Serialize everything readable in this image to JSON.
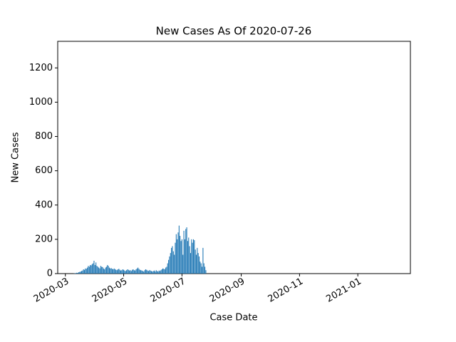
{
  "chart_data": {
    "type": "bar",
    "title": "New Cases As Of 2020-07-26",
    "x_label": "Case Date",
    "y_label": "New Cases",
    "color": "#1f77b4",
    "x": [
      "2020-03-10",
      "2020-03-11",
      "2020-03-12",
      "2020-03-13",
      "2020-03-14",
      "2020-03-15",
      "2020-03-16",
      "2020-03-17",
      "2020-03-18",
      "2020-03-19",
      "2020-03-20",
      "2020-03-21",
      "2020-03-22",
      "2020-03-23",
      "2020-03-24",
      "2020-03-25",
      "2020-03-26",
      "2020-03-27",
      "2020-03-28",
      "2020-03-29",
      "2020-03-30",
      "2020-03-31",
      "2020-04-01",
      "2020-04-02",
      "2020-04-03",
      "2020-04-04",
      "2020-04-05",
      "2020-04-06",
      "2020-04-07",
      "2020-04-08",
      "2020-04-09",
      "2020-04-10",
      "2020-04-11",
      "2020-04-12",
      "2020-04-13",
      "2020-04-14",
      "2020-04-15",
      "2020-04-16",
      "2020-04-17",
      "2020-04-18",
      "2020-04-19",
      "2020-04-20",
      "2020-04-21",
      "2020-04-22",
      "2020-04-23",
      "2020-04-24",
      "2020-04-25",
      "2020-04-26",
      "2020-04-27",
      "2020-04-28",
      "2020-04-29",
      "2020-04-30",
      "2020-05-01",
      "2020-05-02",
      "2020-05-03",
      "2020-05-04",
      "2020-05-05",
      "2020-05-06",
      "2020-05-07",
      "2020-05-08",
      "2020-05-09",
      "2020-05-10",
      "2020-05-11",
      "2020-05-12",
      "2020-05-13",
      "2020-05-14",
      "2020-05-15",
      "2020-05-16",
      "2020-05-17",
      "2020-05-18",
      "2020-05-19",
      "2020-05-20",
      "2020-05-21",
      "2020-05-22",
      "2020-05-23",
      "2020-05-24",
      "2020-05-25",
      "2020-05-26",
      "2020-05-27",
      "2020-05-28",
      "2020-05-29",
      "2020-05-30",
      "2020-05-31",
      "2020-06-01",
      "2020-06-02",
      "2020-06-03",
      "2020-06-04",
      "2020-06-05",
      "2020-06-06",
      "2020-06-07",
      "2020-06-08",
      "2020-06-09",
      "2020-06-10",
      "2020-06-11",
      "2020-06-12",
      "2020-06-13",
      "2020-06-14",
      "2020-06-15",
      "2020-06-16",
      "2020-06-17",
      "2020-06-18",
      "2020-06-19",
      "2020-06-20",
      "2020-06-21",
      "2020-06-22",
      "2020-06-23",
      "2020-06-24",
      "2020-06-25",
      "2020-06-26",
      "2020-06-27",
      "2020-06-28",
      "2020-06-29",
      "2020-06-30",
      "2020-07-01",
      "2020-07-02",
      "2020-07-03",
      "2020-07-04",
      "2020-07-05",
      "2020-07-06",
      "2020-07-07",
      "2020-07-08",
      "2020-07-09",
      "2020-07-10",
      "2020-07-11",
      "2020-07-12",
      "2020-07-13",
      "2020-07-14",
      "2020-07-15",
      "2020-07-16",
      "2020-07-17",
      "2020-07-18",
      "2020-07-19",
      "2020-07-20",
      "2020-07-21",
      "2020-07-22",
      "2020-07-23",
      "2020-07-24",
      "2020-07-25",
      "2020-07-26"
    ],
    "values": [
      1,
      2,
      3,
      5,
      4,
      8,
      10,
      12,
      15,
      18,
      25,
      22,
      30,
      28,
      35,
      45,
      40,
      50,
      48,
      55,
      60,
      75,
      50,
      65,
      45,
      40,
      35,
      30,
      45,
      40,
      38,
      30,
      25,
      35,
      40,
      50,
      45,
      35,
      30,
      32,
      28,
      25,
      30,
      26,
      22,
      20,
      25,
      28,
      22,
      18,
      20,
      25,
      22,
      18,
      15,
      20,
      25,
      22,
      18,
      20,
      15,
      22,
      25,
      20,
      18,
      25,
      30,
      35,
      28,
      22,
      20,
      18,
      15,
      12,
      20,
      25,
      22,
      18,
      15,
      20,
      18,
      15,
      12,
      15,
      18,
      12,
      20,
      15,
      12,
      18,
      15,
      20,
      25,
      30,
      28,
      25,
      35,
      40,
      60,
      80,
      100,
      120,
      150,
      160,
      130,
      110,
      180,
      230,
      200,
      240,
      280,
      220,
      190,
      200,
      110,
      250,
      200,
      260,
      270,
      190,
      210,
      160,
      120,
      200,
      180,
      200,
      195,
      140,
      110,
      150,
      120,
      100,
      70,
      60,
      40,
      150,
      60,
      40,
      20
    ],
    "xlim": [
      "2020-02-22",
      "2021-02-25"
    ],
    "xticks": [
      {
        "value": "2020-03-01",
        "label": "2020-03"
      },
      {
        "value": "2020-05-01",
        "label": "2020-05"
      },
      {
        "value": "2020-07-01",
        "label": "2020-07"
      },
      {
        "value": "2020-09-01",
        "label": "2020-09"
      },
      {
        "value": "2020-11-01",
        "label": "2020-11"
      },
      {
        "value": "2021-01-01",
        "label": "2021-01"
      }
    ],
    "ylim": [
      0,
      1355
    ],
    "yticks": [
      0,
      200,
      400,
      600,
      800,
      1000,
      1200
    ]
  }
}
